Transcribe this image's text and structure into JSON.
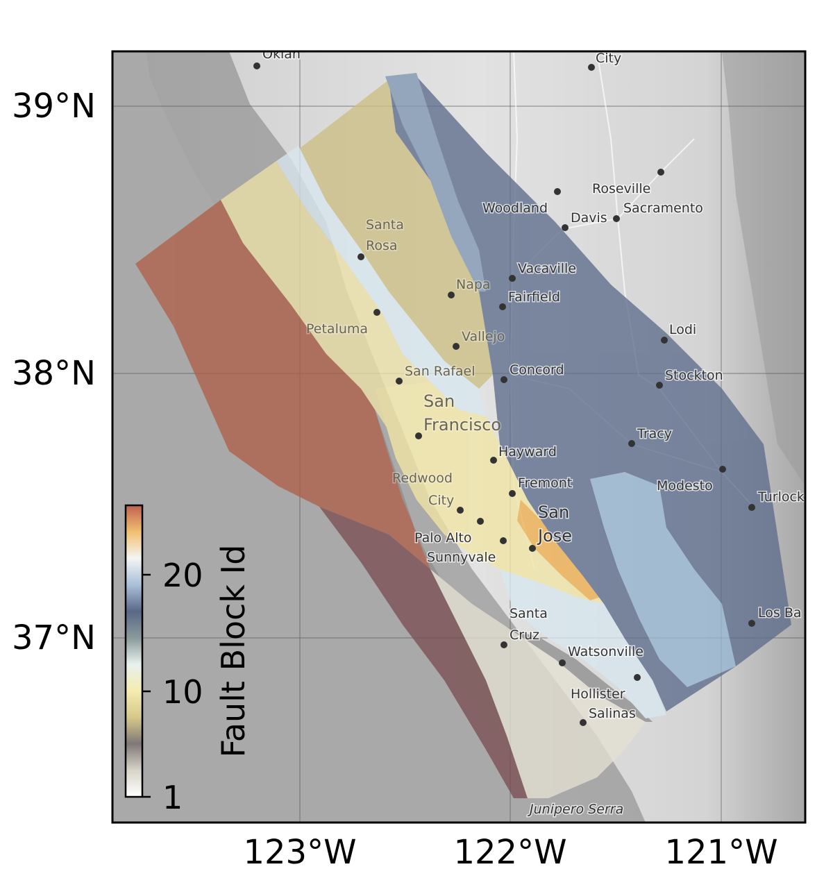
{
  "map": {
    "lon_range": [
      -123.9,
      -120.65
    ],
    "lat_range": [
      36.3,
      39.2
    ],
    "lon_ticks": [
      {
        "lon": -123,
        "label": "123°W"
      },
      {
        "lon": -122,
        "label": "122°W"
      },
      {
        "lon": -121,
        "label": "121°W"
      }
    ],
    "lat_ticks": [
      {
        "lat": 39,
        "label": "39°N"
      },
      {
        "lat": 38,
        "label": "38°N"
      },
      {
        "lat": 37,
        "label": "37°N"
      }
    ],
    "basemap_colors": {
      "ocean": "#a9a9a9",
      "land": "#d7d7d7",
      "terrain_dark": "#8a8a8a"
    }
  },
  "cities": [
    {
      "name": "Oklan"
    },
    {
      "name": "City"
    },
    {
      "name": "Roseville"
    },
    {
      "name": "Woodland"
    },
    {
      "name": "Davis"
    },
    {
      "name": "Sacramento"
    },
    {
      "name": "Santa"
    },
    {
      "name": "Rosa"
    },
    {
      "name": "Vacaville"
    },
    {
      "name": "Napa"
    },
    {
      "name": "Fairfield"
    },
    {
      "name": "Petaluma"
    },
    {
      "name": "Lodi"
    },
    {
      "name": "Vallejo"
    },
    {
      "name": "San Rafael"
    },
    {
      "name": "Concord"
    },
    {
      "name": "Stockton"
    },
    {
      "name": "San"
    },
    {
      "name": "Francisco"
    },
    {
      "name": "Tracy"
    },
    {
      "name": "Hayward"
    },
    {
      "name": "Redwood"
    },
    {
      "name": "City"
    },
    {
      "name": "Fremont"
    },
    {
      "name": "Modesto"
    },
    {
      "name": "Turlock"
    },
    {
      "name": "San"
    },
    {
      "name": "Jose"
    },
    {
      "name": "Palo Alto"
    },
    {
      "name": "Sunnyvale"
    },
    {
      "name": "Santa"
    },
    {
      "name": "Cruz"
    },
    {
      "name": "Los Ba"
    },
    {
      "name": "Watsonville"
    },
    {
      "name": "Hollister"
    },
    {
      "name": "Salinas"
    },
    {
      "name": "Junipero Serra"
    }
  ],
  "fault_blocks": {
    "colormap": "Fault Block Id",
    "colors": {
      "block_ocean_west": "#b0614a",
      "block_ocean_south": "#7a4f52",
      "block_salinian": "#ece1a8",
      "block_peninsula": "#f1e6a6",
      "block_franciscan_gray": "#8f8f8f",
      "block_light_gray": "#e4e0d2",
      "block_light_blue": "#d8e8ef",
      "block_dark_blue": "#5d6d8c",
      "block_mid_blue": "#94b4cf",
      "block_orange": "#f0b050",
      "block_northern_tan": "#cdbf84",
      "block_north_blue": "#7f97b3"
    }
  },
  "colorbar": {
    "label": "Fault Block Id",
    "min": 1,
    "max": 24,
    "ticks": [
      {
        "value": 1,
        "label": "1"
      },
      {
        "value": 10,
        "label": "10"
      },
      {
        "value": 20,
        "label": "20"
      }
    ],
    "stops": [
      "#ffffff",
      "#d8d4c8",
      "#807878",
      "#d6c98a",
      "#f4ecb0",
      "#e8f0ee",
      "#8a9a9a",
      "#5a6888",
      "#a8c0d8",
      "#f4f4f4",
      "#f0c070",
      "#c06050"
    ]
  }
}
